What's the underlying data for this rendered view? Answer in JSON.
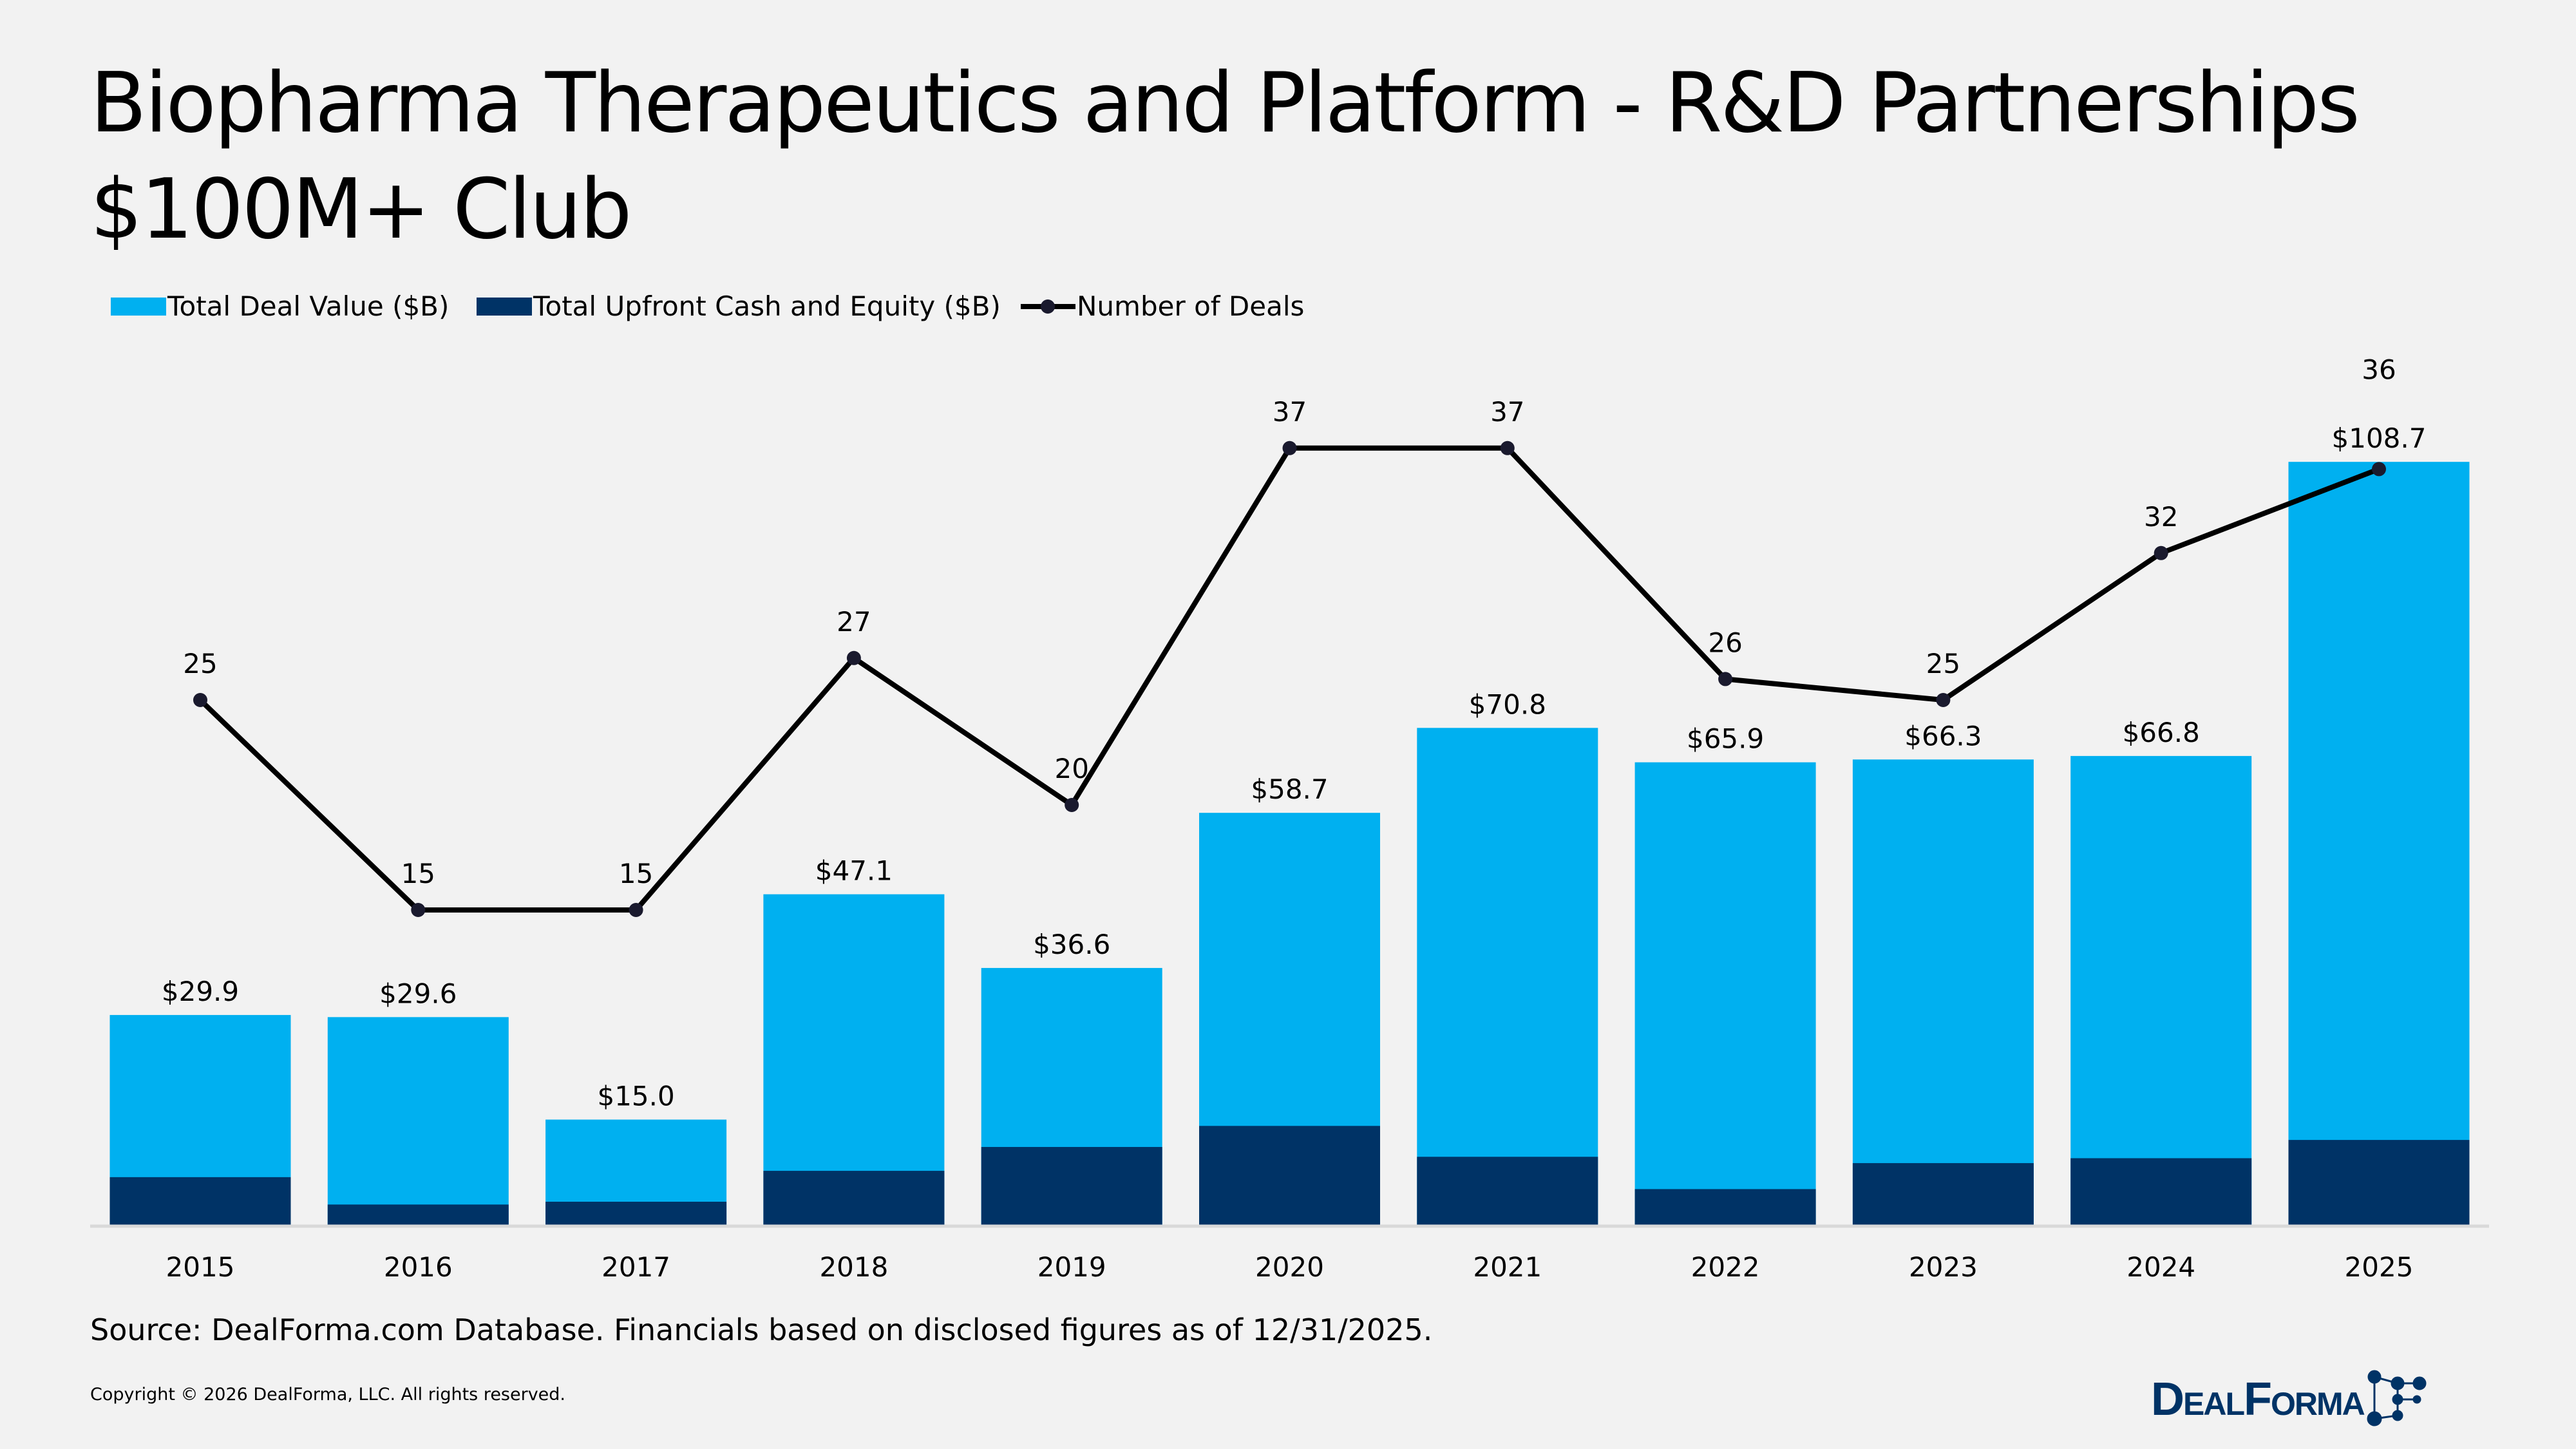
{
  "title_line1": "Biopharma Therapeutics and Platform - R&D Partnerships",
  "title_line2": "$100M+ Club",
  "source": "Source: DealForma.com Database. Financials based on disclosed figures as of 12/31/2025.",
  "copyright": "Copyright © 2026 DealForma, LLC. All rights reserved.",
  "logo_text": "DealForma",
  "colors": {
    "total": "#00B0F0",
    "upfront": "#003366",
    "deals": "#000000",
    "background": "#F2F2F2"
  },
  "chart_data": {
    "type": "bar",
    "stacked": "overlay",
    "categories": [
      "2015",
      "2016",
      "2017",
      "2018",
      "2019",
      "2020",
      "2021",
      "2022",
      "2023",
      "2024",
      "2025"
    ],
    "legend_position": "top-left",
    "grid": false,
    "series": [
      {
        "name": "Total Deal Value ($B)",
        "type": "bar",
        "values": [
          29.9,
          29.6,
          15.0,
          47.1,
          36.6,
          58.7,
          70.8,
          65.9,
          66.3,
          66.8,
          108.7
        ],
        "labels": [
          "$29.9",
          "$29.6",
          "$15.0",
          "$47.1",
          "$36.6",
          "$58.7",
          "$70.8",
          "$65.9",
          "$66.3",
          "$66.8",
          "$108.7"
        ]
      },
      {
        "name": "Total Upfront Cash and Equity ($B)",
        "type": "bar",
        "values": [
          6.8,
          2.9,
          3.3,
          7.7,
          11.1,
          14.1,
          9.7,
          5.1,
          8.8,
          9.5,
          12.1
        ]
      },
      {
        "name": "Number of Deals",
        "type": "line",
        "values": [
          25,
          15,
          15,
          27,
          20,
          37,
          37,
          26,
          25,
          32,
          36
        ],
        "labels": [
          "25",
          "15",
          "15",
          "27",
          "20",
          "37",
          "37",
          "26",
          "25",
          "32",
          "36"
        ]
      }
    ]
  }
}
